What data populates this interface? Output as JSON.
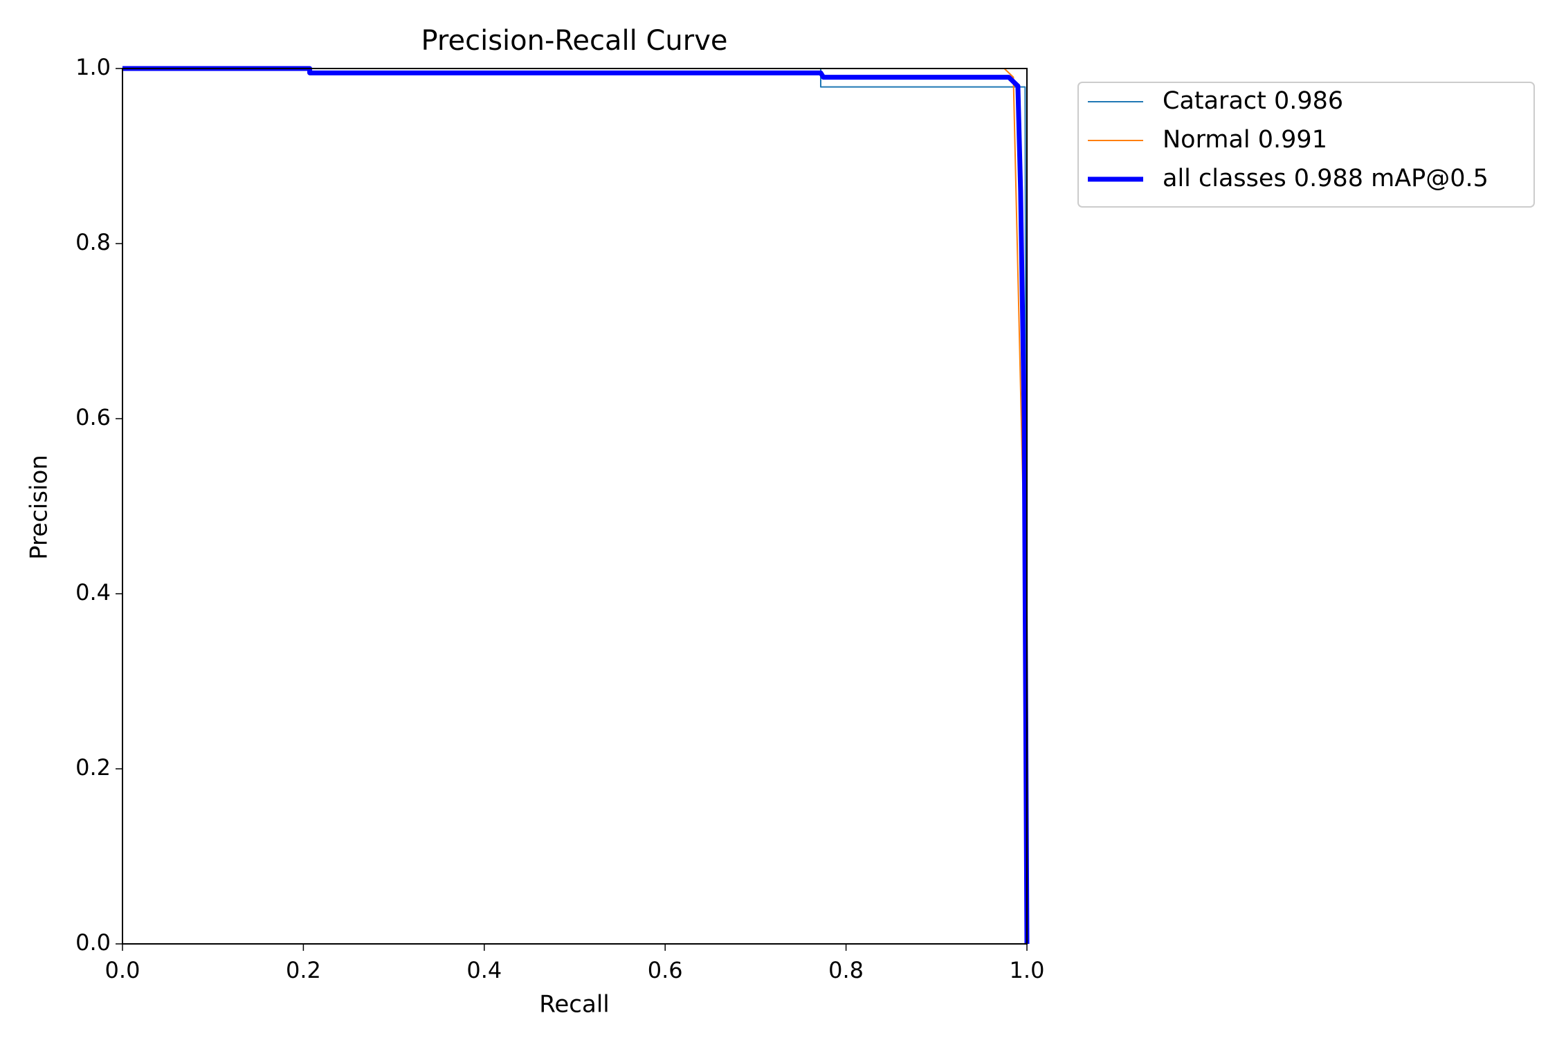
{
  "chart_data": {
    "type": "line",
    "title": "Precision-Recall Curve",
    "x_label": "Recall",
    "y_label": "Precision",
    "xlim": [
      0,
      1
    ],
    "ylim": [
      0,
      1
    ],
    "xticks": [
      {
        "value": 0,
        "label": "0.0"
      },
      0.2,
      0.4,
      0.6,
      0.8,
      {
        "value": 1,
        "label": "1.0"
      }
    ],
    "yticks": [
      {
        "value": 0,
        "label": "0.0"
      },
      0.2,
      0.4,
      0.6,
      0.8,
      {
        "value": 1,
        "label": "1.0"
      }
    ],
    "legend": "outside-upper-right",
    "series": [
      {
        "name": "Cataract 0.986",
        "color": "#1f77b4",
        "x": [
          0,
          0.772,
          0.772,
          0.998,
          0.998,
          1.0
        ],
        "values": [
          1,
          1,
          0.979,
          0.979,
          0.974,
          0
        ]
      },
      {
        "name": "Normal 0.991",
        "color": "#ff7f0e",
        "x": [
          0,
          0.975,
          0.985,
          0.996,
          1.0
        ],
        "values": [
          1,
          1,
          0.99,
          0.5,
          0
        ]
      },
      {
        "name": "all classes 0.988 mAP@0.5",
        "color": "#0000ff",
        "x": [
          0,
          0.207,
          0.207,
          0.772,
          0.775,
          0.98,
          0.985,
          0.99,
          0.993,
          0.997,
          1.0
        ],
        "values": [
          1,
          1,
          0.995,
          0.995,
          0.99,
          0.99,
          0.985,
          0.98,
          0.86,
          0.6,
          0
        ]
      }
    ]
  }
}
